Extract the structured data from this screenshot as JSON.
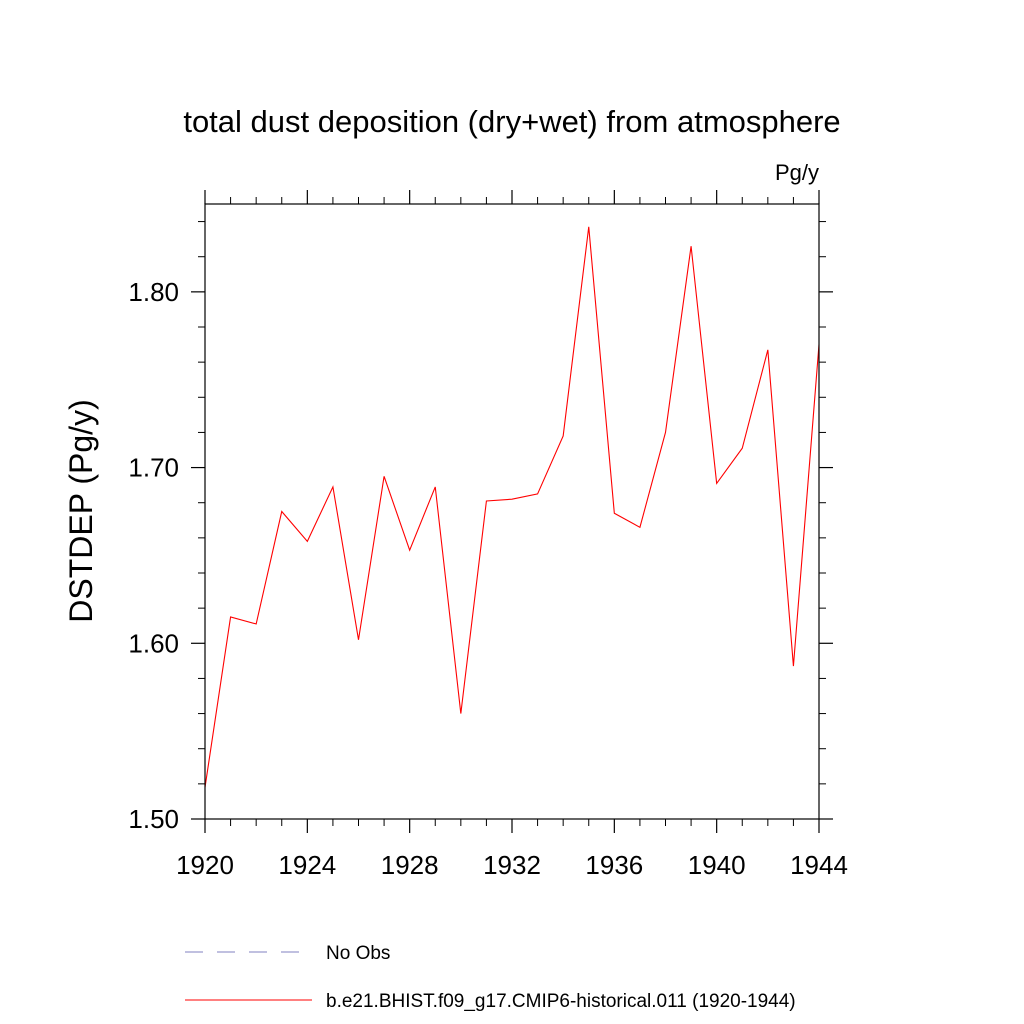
{
  "chart_data": {
    "type": "line",
    "title": "total dust deposition (dry+wet) from atmosphere",
    "units_label": "Pg/y",
    "xlabel": "",
    "ylabel": "DSTDEP  (Pg/y)",
    "xlim": [
      1920,
      1944
    ],
    "ylim": [
      1.5,
      1.85
    ],
    "x_ticks": [
      1920,
      1924,
      1928,
      1932,
      1936,
      1940,
      1944
    ],
    "x_tick_labels": [
      "1920",
      "1924",
      "1928",
      "1932",
      "1936",
      "1940",
      "1944"
    ],
    "x_minor_ticks": [
      1921,
      1922,
      1923,
      1925,
      1926,
      1927,
      1929,
      1930,
      1931,
      1933,
      1934,
      1935,
      1937,
      1938,
      1939,
      1941,
      1942,
      1943
    ],
    "y_ticks": [
      1.5,
      1.6,
      1.7,
      1.8
    ],
    "y_tick_labels": [
      "1.50",
      "1.60",
      "1.70",
      "1.80"
    ],
    "y_minor_ticks": [
      1.52,
      1.54,
      1.56,
      1.58,
      1.62,
      1.64,
      1.66,
      1.68,
      1.72,
      1.74,
      1.76,
      1.78,
      1.82,
      1.84
    ],
    "grid": false,
    "legend_position": "bottom",
    "series": [
      {
        "name": "b.e21.BHIST.f09_g17.CMIP6-historical.011 (1920-1944)",
        "color": "#ff0000",
        "dash": "solid",
        "x": [
          1920,
          1921,
          1922,
          1923,
          1924,
          1925,
          1926,
          1927,
          1928,
          1929,
          1930,
          1931,
          1932,
          1933,
          1934,
          1935,
          1936,
          1937,
          1938,
          1939,
          1940,
          1941,
          1942,
          1943,
          1944
        ],
        "y": [
          1.518,
          1.615,
          1.611,
          1.675,
          1.658,
          1.689,
          1.602,
          1.695,
          1.653,
          1.689,
          1.56,
          1.681,
          1.682,
          1.685,
          1.718,
          1.837,
          1.674,
          1.666,
          1.72,
          1.826,
          1.691,
          1.711,
          1.767,
          1.587,
          1.77
        ]
      }
    ],
    "legend": [
      {
        "label": "No Obs",
        "color": "#8080c0",
        "dash": "dashed"
      },
      {
        "label": "b.e21.BHIST.f09_g17.CMIP6-historical.011 (1920-1944)",
        "color": "#ff0000",
        "dash": "solid"
      }
    ]
  }
}
